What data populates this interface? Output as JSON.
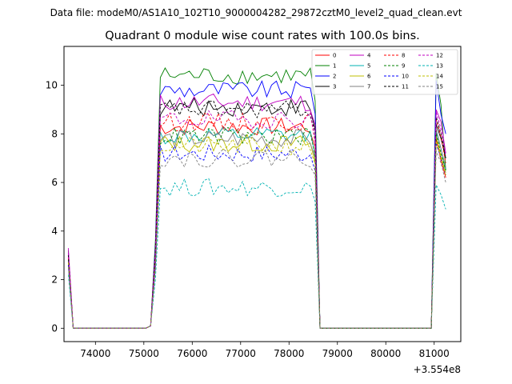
{
  "chart_data": {
    "type": "line",
    "suptitle": "Data file: modeM0/AS1A10_102T10_9000004282_29872cztM0_level2_quad_clean.evt",
    "title": "Quadrant 0 module wise count rates with 100.0s bins.",
    "xlabel": "",
    "ylabel": "",
    "x_offset_label": "+3.554e8",
    "xlim": [
      73350,
      81550
    ],
    "ylim": [
      -0.55,
      11.6
    ],
    "xticks": [
      74000,
      75000,
      76000,
      77000,
      78000,
      79000,
      80000,
      81000
    ],
    "yticks": [
      0,
      2,
      4,
      6,
      8,
      10
    ],
    "legend_position": "upper right",
    "segments": [
      {
        "x_start": 73440,
        "x_end": 73540
      },
      {
        "x_start": 75140,
        "x_end": 78640
      },
      {
        "x_start": 80940,
        "x_end": 81240
      }
    ],
    "series": [
      {
        "name": "0",
        "color": "#ff0000",
        "dash": "solid",
        "base": 8.3,
        "seg1": [
          3.0,
          0
        ],
        "seg3": [
          0,
          7.8,
          6.9,
          6.2
        ]
      },
      {
        "name": "1",
        "color": "#008000",
        "dash": "solid",
        "base": 10.4,
        "seg1": [
          3.2,
          0
        ],
        "seg3": [
          0,
          10.5,
          9.2,
          6.5
        ]
      },
      {
        "name": "2",
        "color": "#0000ff",
        "dash": "solid",
        "base": 9.8,
        "seg1": [
          3.1,
          0
        ],
        "seg3": [
          0,
          10.2,
          8.8,
          8.0
        ]
      },
      {
        "name": "3",
        "color": "#000000",
        "dash": "solid",
        "base": 9.1,
        "seg1": [
          3.0,
          0
        ],
        "seg3": [
          0,
          8.4,
          7.8,
          7.0
        ]
      },
      {
        "name": "4",
        "color": "#c000c0",
        "dash": "solid",
        "base": 9.3,
        "seg1": [
          3.3,
          0
        ],
        "seg3": [
          0,
          9.0,
          8.5,
          7.2
        ]
      },
      {
        "name": "5",
        "color": "#00b3b3",
        "dash": "solid",
        "base": 7.9,
        "seg1": [
          2.8,
          0
        ],
        "seg3": [
          0,
          8.1,
          7.4,
          6.5
        ]
      },
      {
        "name": "6",
        "color": "#bfbf00",
        "dash": "solid",
        "base": 7.6,
        "seg1": [
          2.7,
          0
        ],
        "seg3": [
          0,
          7.9,
          7.1,
          6.4
        ]
      },
      {
        "name": "7",
        "color": "#808080",
        "dash": "solid",
        "base": 7.8,
        "seg1": [
          2.6,
          0
        ],
        "seg3": [
          0,
          8.2,
          7.4,
          6.6
        ]
      },
      {
        "name": "8",
        "color": "#ff0000",
        "dash": "dashed",
        "base": 8.5,
        "seg1": [
          2.9,
          0
        ],
        "seg3": [
          0,
          8.6,
          7.9,
          6.8
        ]
      },
      {
        "name": "9",
        "color": "#008000",
        "dash": "dashed",
        "base": 7.9,
        "seg1": [
          2.8,
          0
        ],
        "seg3": [
          0,
          8.0,
          7.2,
          6.5
        ]
      },
      {
        "name": "10",
        "color": "#0000ff",
        "dash": "dashed",
        "base": 7.2,
        "seg1": [
          2.6,
          0
        ],
        "seg3": [
          0,
          7.6,
          7.0,
          6.3
        ]
      },
      {
        "name": "11",
        "color": "#000000",
        "dash": "dashed",
        "base": 9.0,
        "seg1": [
          3.0,
          0
        ],
        "seg3": [
          0,
          8.7,
          8.0,
          7.0
        ]
      },
      {
        "name": "12",
        "color": "#c000c0",
        "dash": "dashed",
        "base": 8.6,
        "seg1": [
          3.1,
          0
        ],
        "seg3": [
          0,
          8.9,
          8.2,
          7.1
        ]
      },
      {
        "name": "13",
        "color": "#00b3b3",
        "dash": "dashed",
        "base": 5.8,
        "seg1": [
          2.2,
          0
        ],
        "seg3": [
          0,
          5.9,
          5.5,
          4.9
        ]
      },
      {
        "name": "14",
        "color": "#bfbf00",
        "dash": "dashed",
        "base": 7.5,
        "seg1": [
          2.7,
          0
        ],
        "seg3": [
          0,
          7.7,
          7.0,
          6.3
        ]
      },
      {
        "name": "15",
        "color": "#808080",
        "dash": "dashed",
        "base": 7.0,
        "seg1": [
          2.5,
          0
        ],
        "seg3": [
          0,
          7.3,
          6.8,
          6.0
        ]
      }
    ]
  }
}
